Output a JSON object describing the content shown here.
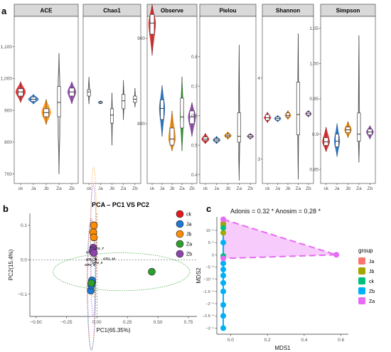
{
  "chart_data": [
    {
      "type": "violin",
      "panel": "a",
      "categories": [
        "ck",
        "Ja",
        "Jb",
        "Za",
        "Zb"
      ],
      "colors": {
        "ck": "#e31a1c",
        "Ja": "#1f78d4",
        "Jb": "#ff8c00",
        "Za": "#2ca02c",
        "Zb": "#8e44ad"
      },
      "facets": [
        {
          "name": "ACE",
          "ylim": [
            670,
            1180
          ],
          "yticks": [
            700,
            800,
            900,
            "1,000",
            "1,100"
          ],
          "ytick_values": [
            700,
            800,
            900,
            1000,
            1100
          ],
          "groups": [
            {
              "cat": "ck",
              "min": 925,
              "q1": 945,
              "median": 958,
              "q3": 968,
              "max": 990,
              "width": 0.75
            },
            {
              "cat": "Ja",
              "min": 920,
              "q1": 928,
              "median": 935,
              "q3": 942,
              "max": 950,
              "width": 0.8
            },
            {
              "cat": "Jb",
              "min": 855,
              "q1": 880,
              "median": 893,
              "q3": 905,
              "max": 935,
              "width": 0.7
            },
            {
              "cat": "Za",
              "min": 700,
              "q1": 880,
              "median": 925,
              "q3": 975,
              "max": 1080,
              "width": 0.25
            },
            {
              "cat": "Zb",
              "min": 920,
              "q1": 945,
              "median": 958,
              "q3": 970,
              "max": 990,
              "width": 0.65
            }
          ]
        },
        {
          "name": "Chao1",
          "ylim": [
            670,
            1180
          ],
          "yticks": [],
          "ytick_values": [],
          "groups": [
            {
              "cat": "ck",
              "min": 920,
              "q1": 945,
              "median": 958,
              "q3": 965,
              "max": 1005,
              "width": 0.15
            },
            {
              "cat": "Ja",
              "min": 920,
              "q1": 922,
              "median": 925,
              "q3": 928,
              "max": 930,
              "width": 0.4
            },
            {
              "cat": "Jb",
              "min": 790,
              "q1": 860,
              "median": 885,
              "q3": 905,
              "max": 955,
              "width": 0.12
            },
            {
              "cat": "Za",
              "min": 870,
              "q1": 905,
              "median": 930,
              "q3": 950,
              "max": 995,
              "width": 0.12
            },
            {
              "cat": "Zb",
              "min": 910,
              "q1": 925,
              "median": 935,
              "q3": 945,
              "max": 970,
              "width": 0.12
            }
          ]
        },
        {
          "name": "Observe",
          "ylim": [
            730,
            920
          ],
          "yticks": [
            800,
            900
          ],
          "ytick_values": [
            800,
            900
          ],
          "groups": [
            {
              "cat": "ck",
              "min": 880,
              "q1": 905,
              "median": 918,
              "q3": 928,
              "max": 940,
              "width": 0.7
            },
            {
              "cat": "Ja",
              "min": 785,
              "q1": 805,
              "median": 818,
              "q3": 828,
              "max": 845,
              "width": 0.55
            },
            {
              "cat": "Jb",
              "min": 768,
              "q1": 775,
              "median": 782,
              "q3": 795,
              "max": 815,
              "width": 0.7
            },
            {
              "cat": "Za",
              "min": 768,
              "q1": 795,
              "median": 808,
              "q3": 830,
              "max": 855,
              "width": 0.35
            },
            {
              "cat": "Zb",
              "min": 785,
              "q1": 800,
              "median": 808,
              "q3": 815,
              "max": 825,
              "width": 0.75
            }
          ]
        },
        {
          "name": "Pielou",
          "ylim": [
            0.37,
            0.92
          ],
          "yticks": [
            0.4,
            0.5,
            0.6,
            0.7,
            0.8
          ],
          "ytick_values": [
            0.4,
            0.5,
            0.6,
            0.7,
            0.8
          ],
          "groups": [
            {
              "cat": "ck",
              "min": 0.505,
              "q1": 0.515,
              "median": 0.52,
              "q3": 0.528,
              "max": 0.54,
              "width": 0.65
            },
            {
              "cat": "Ja",
              "min": 0.505,
              "q1": 0.512,
              "median": 0.517,
              "q3": 0.522,
              "max": 0.53,
              "width": 0.65
            },
            {
              "cat": "Jb",
              "min": 0.52,
              "q1": 0.528,
              "median": 0.532,
              "q3": 0.537,
              "max": 0.545,
              "width": 0.65
            },
            {
              "cat": "Za",
              "min": 0.38,
              "q1": 0.51,
              "median": 0.53,
              "q3": 0.61,
              "max": 0.84,
              "width": 0.15
            },
            {
              "cat": "Zb",
              "min": 0.52,
              "q1": 0.525,
              "median": 0.53,
              "q3": 0.535,
              "max": 0.54,
              "width": 0.6
            }
          ]
        },
        {
          "name": "Shannon",
          "ylim": [
            2.7,
            4.7
          ],
          "yticks": [
            3,
            4
          ],
          "ytick_values": [
            3,
            4
          ],
          "groups": [
            {
              "cat": "ck",
              "min": 3.45,
              "q1": 3.48,
              "median": 3.51,
              "q3": 3.55,
              "max": 3.58,
              "width": 0.65
            },
            {
              "cat": "Ja",
              "min": 3.46,
              "q1": 3.48,
              "median": 3.5,
              "q3": 3.52,
              "max": 3.54,
              "width": 0.65
            },
            {
              "cat": "Jb",
              "min": 3.49,
              "q1": 3.52,
              "median": 3.54,
              "q3": 3.57,
              "max": 3.6,
              "width": 0.6
            },
            {
              "cat": "Za",
              "min": 2.75,
              "q1": 3.3,
              "median": 3.55,
              "q3": 3.95,
              "max": 4.55,
              "width": 0.15
            },
            {
              "cat": "Zb",
              "min": 3.52,
              "q1": 3.54,
              "median": 3.56,
              "q3": 3.58,
              "max": 3.6,
              "width": 0.6
            }
          ]
        },
        {
          "name": "Simpson",
          "ylim": [
            0.83,
            1.06
          ],
          "yticks": [
            0.85,
            0.9,
            0.95,
            "1.00",
            1.05
          ],
          "ytick_values": [
            0.85,
            0.9,
            0.95,
            1.0,
            1.05
          ],
          "groups": [
            {
              "cat": "ck",
              "min": 0.875,
              "q1": 0.884,
              "median": 0.889,
              "q3": 0.895,
              "max": 0.91,
              "width": 0.65
            },
            {
              "cat": "Ja",
              "min": 0.868,
              "q1": 0.882,
              "median": 0.89,
              "q3": 0.9,
              "max": 0.915,
              "width": 0.5
            },
            {
              "cat": "Jb",
              "min": 0.895,
              "q1": 0.902,
              "median": 0.906,
              "q3": 0.91,
              "max": 0.918,
              "width": 0.65
            },
            {
              "cat": "Za",
              "min": 0.86,
              "q1": 0.89,
              "median": 0.9,
              "q3": 0.93,
              "max": 1.04,
              "width": 0.15
            },
            {
              "cat": "Zb",
              "min": 0.893,
              "q1": 0.899,
              "median": 0.903,
              "q3": 0.907,
              "max": 0.912,
              "width": 0.65
            }
          ]
        }
      ]
    },
    {
      "type": "scatter",
      "panel": "b",
      "title": "PCA – PC1 VS PC2",
      "xlabel": "PC1(65.35%)",
      "ylabel": "PC2(15.4%)",
      "xlim": [
        -0.55,
        0.82
      ],
      "ylim": [
        -0.165,
        0.135
      ],
      "xticks": [
        -0.5,
        -0.25,
        0.0,
        0.25,
        0.5,
        0.75
      ],
      "xtick_labels": [
        "−0.50",
        "−0.25",
        "0.00",
        "0.25",
        "0.50",
        "0.75"
      ],
      "yticks": [
        -0.1,
        0.0,
        0.1
      ],
      "ytick_labels": [
        "−0.1",
        "0.0",
        "0.1"
      ],
      "legend": [
        "ck",
        "Ja",
        "Jb",
        "Za",
        "Zb"
      ],
      "legend_position": "right",
      "series": [
        {
          "name": "ck",
          "color": "#e31a1c",
          "points": [
            [
              -0.045,
              -0.07
            ],
            [
              -0.04,
              -0.065
            ]
          ]
        },
        {
          "name": "Ja",
          "color": "#1f78d4",
          "points": [
            [
              -0.05,
              -0.09
            ],
            [
              -0.045,
              -0.075
            ],
            [
              -0.04,
              -0.06
            ]
          ]
        },
        {
          "name": "Jb",
          "color": "#ff8c00",
          "points": [
            [
              -0.03,
              0.08
            ],
            [
              -0.025,
              0.065
            ],
            [
              -0.025,
              0.1
            ]
          ]
        },
        {
          "name": "Za",
          "color": "#2ca02c",
          "points": [
            [
              0.45,
              -0.035
            ],
            [
              -0.045,
              -0.068
            ]
          ]
        },
        {
          "name": "Zb",
          "color": "#8e44ad",
          "points": [
            [
              -0.03,
              0.035
            ],
            [
              -0.03,
              0.03
            ],
            [
              -0.035,
              0.025
            ],
            [
              -0.025,
              0.02
            ]
          ]
        }
      ],
      "annotations": [
        "OTU_7",
        "OTU_1",
        "OTU_4",
        "OTU_10",
        "OTU_5",
        "OTU_3"
      ]
    },
    {
      "type": "scatter",
      "panel": "c",
      "title": "Adonis = 0.32 * Anosim = 0.28 *",
      "xlabel": "MDS1",
      "ylabel": "MDS2",
      "xlim": [
        -0.075,
        0.64
      ],
      "ylim": [
        -3.25,
        1.55
      ],
      "xticks": [
        0.0,
        0.2,
        0.4,
        0.6
      ],
      "xtick_labels": [
        "0.0",
        "0.2",
        "0.4",
        "0.6"
      ],
      "yticks": [
        1,
        0.5,
        0,
        -0.5,
        -1,
        -1.5,
        -2,
        -2.5,
        -3
      ],
      "ytick_labels": [
        "10⁻⁴",
        "5⁻⁵",
        "0",
        "−5⁻⁵",
        "−10⁻⁴",
        "−1.5⁻⁴",
        "−2⁻⁴",
        "−2.5⁻⁴",
        "−3⁻⁴"
      ],
      "legend_title": "group",
      "legend": [
        "Ja",
        "Jb",
        "ck",
        "Zb",
        "Za"
      ],
      "legend_position": "right",
      "series": [
        {
          "name": "Ja",
          "color": "#f8766d",
          "points": [
            [
              -0.04,
              1.3
            ],
            [
              -0.04,
              1.2
            ]
          ]
        },
        {
          "name": "Jb",
          "color": "#a3a500",
          "points": [
            [
              -0.04,
              1.25
            ],
            [
              -0.04,
              0.9
            ]
          ]
        },
        {
          "name": "ck",
          "color": "#00bf7d",
          "points": [
            [
              -0.04,
              1.1
            ],
            [
              -0.04,
              -0.05
            ]
          ]
        },
        {
          "name": "Zb",
          "color": "#00b0f6",
          "points": [
            [
              -0.04,
              -0.6
            ],
            [
              -0.04,
              -0.85
            ],
            [
              -0.04,
              -1.15
            ],
            [
              -0.04,
              -1.5
            ],
            [
              -0.04,
              -2.05
            ],
            [
              -0.04,
              -2.5
            ],
            [
              -0.04,
              -3.0
            ],
            [
              -0.04,
              -0.35
            ],
            [
              -0.04,
              0.5
            ]
          ]
        },
        {
          "name": "Za",
          "color": "#e76bf3",
          "points": [
            [
              0.575,
              0.0
            ],
            [
              -0.04,
              1.45
            ],
            [
              -0.04,
              -0.15
            ]
          ]
        }
      ],
      "hull": {
        "group": "Za",
        "points": [
          [
            -0.04,
            1.45
          ],
          [
            0.575,
            0.0
          ],
          [
            -0.04,
            -0.15
          ]
        ]
      }
    }
  ]
}
